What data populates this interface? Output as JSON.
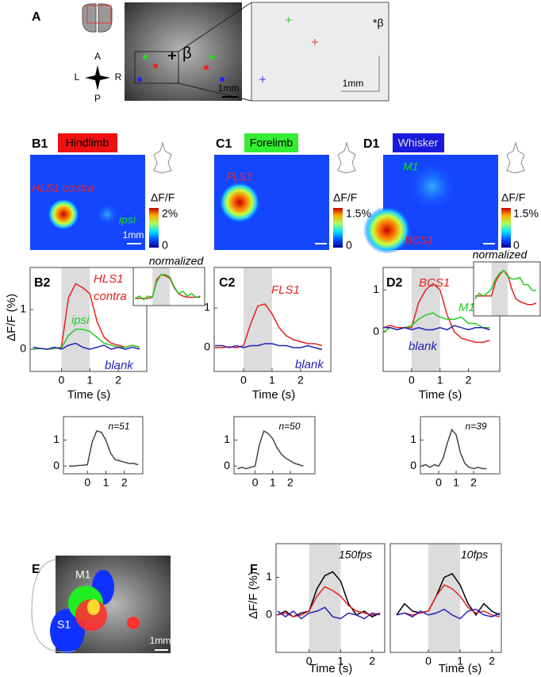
{
  "panels": {
    "A": {
      "label": "A",
      "compass": [
        "A",
        "P",
        "L",
        "R"
      ],
      "photo_label": "β",
      "photo_scale": "1mm",
      "zoom_label": "*β",
      "zoom_scale": "1mm"
    },
    "B1": {
      "label": "B1",
      "stimulus": "Hindlimb",
      "labels": [
        "HLS1 contra",
        "ipsi"
      ],
      "cbar_label": "ΔF/F",
      "cbar_max": "2%",
      "cbar_min": "0",
      "scale": "1mm"
    },
    "C1": {
      "label": "C1",
      "stimulus": "Forelimb",
      "labels": [
        "FLS1"
      ],
      "cbar_label": "ΔF/F",
      "cbar_max": "1.5%",
      "cbar_min": "0"
    },
    "D1": {
      "label": "D1",
      "stimulus": "Whisker",
      "labels": [
        "M1",
        "BCS1"
      ],
      "cbar_label": "ΔF/F",
      "cbar_max": "1.5%",
      "cbar_min": "0"
    },
    "E": {
      "label": "E",
      "labels": [
        "M1",
        "S1"
      ],
      "scale": "1mm"
    },
    "F": {
      "label": "F"
    }
  },
  "chart_data": [
    {
      "type": "line",
      "label": "B2",
      "ylabel": "ΔF/F (%)",
      "xlabel": "Time (s)",
      "span": [
        0,
        1
      ],
      "x": [
        -1,
        -0.75,
        -0.5,
        -0.25,
        0,
        0.25,
        0.5,
        0.75,
        1,
        1.25,
        1.5,
        1.75,
        2,
        2.25,
        2.5,
        2.75
      ],
      "xlim": [
        -1.1,
        3.0
      ],
      "ylim": [
        -0.56,
        2.06
      ],
      "xticks": [
        0,
        1,
        2
      ],
      "yticks": [
        0,
        1
      ],
      "series": [
        {
          "name": "HLS1 contra",
          "color": "#e8201c",
          "values": [
            0,
            0.02,
            0,
            0.02,
            0.05,
            1.3,
            1.65,
            1.55,
            1.4,
            0.7,
            0.3,
            0.15,
            0.1,
            0.05,
            0.1,
            0.05
          ]
        },
        {
          "name": "ipsi",
          "color": "#22cc22",
          "values": [
            0,
            0.02,
            0,
            0.02,
            0.03,
            0.35,
            0.5,
            0.5,
            0.45,
            0.3,
            0.15,
            0.1,
            0.05,
            0.05,
            0.1,
            0.05
          ]
        },
        {
          "name": "blank",
          "color": "#2222bb",
          "values": [
            0.05,
            0.02,
            0,
            0.05,
            0,
            0.1,
            0.15,
            0.05,
            0,
            0.05,
            0.1,
            0,
            0.05,
            0,
            0.05,
            0
          ]
        }
      ]
    },
    {
      "type": "line",
      "note": "normalized",
      "span": [
        0,
        1
      ],
      "x": [
        -1,
        -0.75,
        -0.5,
        -0.25,
        0,
        0.25,
        0.5,
        0.75,
        1,
        1.25,
        1.5,
        1.75,
        2,
        2.25,
        2.5,
        2.75
      ],
      "xlim": [
        -1.1,
        3.0
      ],
      "ylim": [
        -0.3,
        1.3
      ],
      "series": [
        {
          "color": "#e8201c",
          "values": [
            0,
            0,
            0,
            0,
            0.05,
            0.8,
            1,
            0.95,
            0.85,
            0.45,
            0.2,
            0.1,
            0.05,
            0.05,
            0.05,
            0.05
          ]
        },
        {
          "color": "#22cc22",
          "values": [
            0,
            0.1,
            -0.05,
            0.1,
            0.05,
            0.7,
            1,
            1,
            0.9,
            0.5,
            0.2,
            0.3,
            0.1,
            0.2,
            0.05,
            0.1
          ]
        }
      ]
    },
    {
      "type": "line",
      "label": "C2",
      "xlabel": "Time (s)",
      "span": [
        0,
        1
      ],
      "x": [
        -1,
        -0.75,
        -0.5,
        -0.25,
        0,
        0.25,
        0.5,
        0.75,
        1,
        1.25,
        1.5,
        1.75,
        2,
        2.25,
        2.5,
        2.75
      ],
      "xlim": [
        -1.03,
        3.06
      ],
      "ylim": [
        -0.6,
        2.02
      ],
      "xticks": [
        0,
        1,
        2
      ],
      "yticks": [
        0,
        1
      ],
      "series": [
        {
          "name": "FLS1",
          "color": "#e8201c",
          "values": [
            0,
            0,
            0.02,
            0,
            0.05,
            0.6,
            1.05,
            1.1,
            0.85,
            0.5,
            0.3,
            0.2,
            0.15,
            0.1,
            0.1,
            0.05
          ]
        },
        {
          "name": "blank",
          "color": "#2222bb",
          "values": [
            0.05,
            0.05,
            0,
            0.05,
            0,
            0.05,
            0.05,
            0.1,
            0.1,
            0.05,
            0.05,
            0,
            0,
            0.05,
            0,
            -0.05
          ]
        }
      ]
    },
    {
      "type": "line",
      "label": "D2",
      "xlabel": "Time (s)",
      "span": [
        0,
        1
      ],
      "x": [
        -1,
        -0.75,
        -0.5,
        -0.25,
        0,
        0.25,
        0.5,
        0.75,
        1,
        1.25,
        1.5,
        1.75,
        2,
        2.25,
        2.5,
        2.75
      ],
      "xlim": [
        -1.0,
        3.1
      ],
      "ylim": [
        -0.94,
        1.53
      ],
      "xticks": [
        0,
        1,
        2
      ],
      "yticks": [
        0,
        1
      ],
      "series": [
        {
          "name": "BCS1",
          "color": "#e8201c",
          "values": [
            0.1,
            0.15,
            0.1,
            0.1,
            0.1,
            0.7,
            1,
            1.15,
            1,
            0.4,
            0,
            -0.15,
            -0.2,
            -0.25,
            -0.25,
            -0.2
          ]
        },
        {
          "name": "M1",
          "color": "#22cc22",
          "values": [
            0,
            0.1,
            0.05,
            0.1,
            0.15,
            0.3,
            0.4,
            0.45,
            0.35,
            0.3,
            0.3,
            0.35,
            0.2,
            0.2,
            0.1,
            0.1
          ]
        },
        {
          "name": "blank",
          "color": "#2222bb",
          "values": [
            0.1,
            0.1,
            0.05,
            0.1,
            0.05,
            0.1,
            0.05,
            0.05,
            0.1,
            0.05,
            0.15,
            0.1,
            0.05,
            0.1,
            0.1,
            0.05
          ]
        }
      ]
    },
    {
      "type": "line",
      "note": "normalized",
      "span": [
        0,
        1
      ],
      "x": [
        -1,
        -0.75,
        -0.5,
        -0.25,
        0,
        0.25,
        0.5,
        0.75,
        1,
        1.25,
        1.5,
        1.75,
        2,
        2.25,
        2.5,
        2.75
      ],
      "xlim": [
        -1.1,
        3.0
      ],
      "ylim": [
        -0.6,
        1.3
      ],
      "series": [
        {
          "color": "#e8201c",
          "values": [
            0.1,
            0.1,
            0.1,
            0.1,
            0.1,
            0.6,
            0.85,
            1,
            0.85,
            0.35,
            0,
            -0.1,
            -0.15,
            -0.2,
            -0.2,
            -0.15
          ]
        },
        {
          "color": "#22cc22",
          "values": [
            0,
            0.2,
            0.1,
            0.2,
            0.35,
            0.7,
            0.9,
            1,
            0.8,
            0.7,
            0.7,
            0.75,
            0.5,
            0.5,
            0.3,
            0.3
          ]
        }
      ]
    },
    {
      "type": "line",
      "note": "n=51",
      "x": [
        -1,
        -0.75,
        -0.5,
        -0.25,
        0,
        0.25,
        0.5,
        0.75,
        1,
        1.25,
        1.5,
        1.75,
        2,
        2.25,
        2.5,
        2.75
      ],
      "xlim": [
        -1.3,
        3.0
      ],
      "ylim": [
        -0.3,
        1.9
      ],
      "xticks": [
        0,
        1,
        2
      ],
      "yticks": [
        0,
        1
      ],
      "series": [
        {
          "color": "#444444",
          "values": [
            0,
            0,
            0.02,
            0.03,
            0.05,
            0.9,
            1.35,
            1.3,
            1,
            0.5,
            0.25,
            0.2,
            0.15,
            0.1,
            0.1,
            0.05
          ]
        }
      ]
    },
    {
      "type": "line",
      "note": "n=50",
      "x": [
        -1,
        -0.75,
        -0.5,
        -0.25,
        0,
        0.25,
        0.5,
        0.75,
        1,
        1.25,
        1.5,
        1.75,
        2,
        2.25,
        2.5,
        2.75
      ],
      "xlim": [
        -1.2,
        3.4
      ],
      "ylim": [
        -0.3,
        1.9
      ],
      "xticks": [
        0,
        1,
        2
      ],
      "yticks": [
        0,
        1
      ],
      "series": [
        {
          "color": "#444444",
          "values": [
            -0.1,
            -0.05,
            -0.1,
            -0.05,
            0,
            0.85,
            1.35,
            1.25,
            1.05,
            0.7,
            0.45,
            0.3,
            0.2,
            0.1,
            0.05,
            0
          ]
        }
      ]
    },
    {
      "type": "line",
      "note": "n=39",
      "x": [
        -1,
        -0.75,
        -0.5,
        -0.25,
        0,
        0.25,
        0.5,
        0.75,
        1,
        1.25,
        1.5,
        1.75,
        2,
        2.25,
        2.5,
        2.75
      ],
      "xlim": [
        -1.05,
        3.5
      ],
      "ylim": [
        -0.3,
        1.9
      ],
      "xticks": [
        0,
        1,
        2
      ],
      "yticks": [
        0,
        1
      ],
      "series": [
        {
          "color": "#444444",
          "values": [
            0,
            0.05,
            -0.05,
            0.05,
            0,
            0.3,
            0.9,
            1.4,
            1.2,
            0.5,
            0.1,
            -0.05,
            -0.1,
            -0.05,
            -0.1,
            -0.1
          ]
        }
      ]
    },
    {
      "type": "line",
      "note": "150fps",
      "ylabel": "ΔF/F (%)",
      "xlabel": "Time (s)",
      "span": [
        0,
        1
      ],
      "x": [
        -1,
        -0.75,
        -0.5,
        -0.25,
        0,
        0.25,
        0.5,
        0.75,
        1,
        1.25,
        1.5,
        1.75,
        2,
        2.25
      ],
      "xlim": [
        -1.05,
        2.4
      ],
      "ylim": [
        -1.0,
        1.9
      ],
      "xticks": [
        0,
        1,
        2
      ],
      "yticks": [
        0,
        1
      ],
      "series": [
        {
          "color": "#000000",
          "values": [
            0,
            0.1,
            -0.05,
            0.05,
            0.1,
            0.7,
            1.05,
            1.15,
            0.9,
            0.3,
            0,
            0.1,
            -0.05,
            0.05
          ]
        },
        {
          "color": "#e8201c",
          "values": [
            0,
            0.05,
            -0.05,
            0,
            0.1,
            0.5,
            0.75,
            0.65,
            0.5,
            0.25,
            0.1,
            0.05,
            0,
            0.05
          ]
        },
        {
          "color": "#2222bb",
          "values": [
            0.1,
            -0.05,
            0.1,
            -0.1,
            0.05,
            0.1,
            0.2,
            -0.05,
            -0.1,
            0.05,
            0,
            -0.1,
            0.05,
            0
          ]
        }
      ]
    },
    {
      "type": "line",
      "note": "10fps",
      "xlabel": "Time (s)",
      "span": [
        0,
        1
      ],
      "x": [
        -1,
        -0.75,
        -0.5,
        -0.25,
        0,
        0.25,
        0.5,
        0.75,
        1,
        1.25,
        1.5,
        1.75,
        2,
        2.25
      ],
      "xlim": [
        -1.2,
        2.3
      ],
      "ylim": [
        -1.0,
        1.9
      ],
      "xticks": [
        0,
        1,
        2
      ],
      "series": [
        {
          "color": "#000000",
          "values": [
            0,
            0.3,
            0.1,
            0.05,
            0.1,
            0.5,
            1,
            1.1,
            0.8,
            0.3,
            0,
            0.3,
            0.1,
            0
          ]
        },
        {
          "color": "#e8201c",
          "values": [
            0,
            0.05,
            0,
            0.05,
            0.1,
            0.5,
            0.8,
            0.7,
            0.5,
            0.2,
            0.05,
            0.1,
            0,
            -0.05
          ]
        },
        {
          "color": "#2222bb",
          "values": [
            0,
            0.05,
            -0.05,
            0.1,
            0,
            0.05,
            0.15,
            0,
            -0.1,
            0.1,
            0.15,
            0,
            -0.05,
            0.05
          ]
        }
      ]
    }
  ]
}
